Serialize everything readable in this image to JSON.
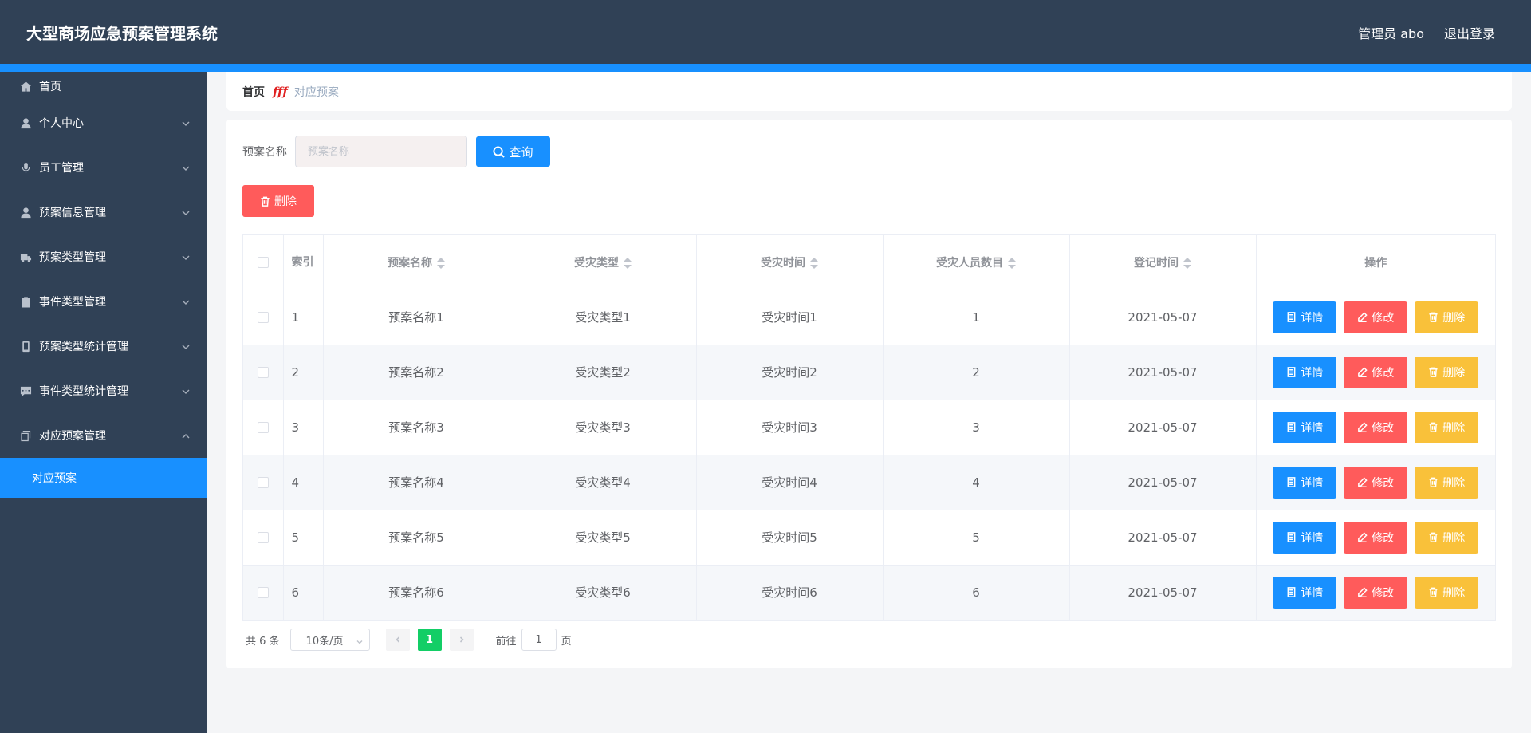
{
  "header": {
    "title": "大型商场应急预案管理系统",
    "user": "管理员 abo",
    "logout": "退出登录"
  },
  "colors": {
    "header_bg": "#304156",
    "accent": "#1890ff",
    "danger": "#ff5b5b",
    "warning": "#f9c13a",
    "success": "#13ce66"
  },
  "sidebar": {
    "items": [
      {
        "label": "首页",
        "icon": "home-icon"
      },
      {
        "label": "个人中心",
        "icon": "user-icon"
      },
      {
        "label": "员工管理",
        "icon": "microphone-icon"
      },
      {
        "label": "预案信息管理",
        "icon": "user-icon"
      },
      {
        "label": "预案类型管理",
        "icon": "truck-icon"
      },
      {
        "label": "事件类型管理",
        "icon": "clipboard-icon"
      },
      {
        "label": "预案类型统计管理",
        "icon": "phone-icon"
      },
      {
        "label": "事件类型统计管理",
        "icon": "chat-icon"
      },
      {
        "label": "对应预案管理",
        "icon": "copy-icon"
      }
    ],
    "active_submenu": "对应预案"
  },
  "breadcrumb": {
    "home": "首页",
    "separator": "fff",
    "current": "对应预案"
  },
  "search": {
    "label": "预案名称",
    "placeholder": "预案名称",
    "query_button": "查询"
  },
  "toolbar": {
    "delete_button": "删除"
  },
  "table": {
    "headers": {
      "index": "索引",
      "name": "预案名称",
      "type": "受灾类型",
      "time": "受灾时间",
      "count": "受灾人员数目",
      "date": "登记时间",
      "ops": "操作"
    },
    "rows": [
      {
        "index": "1",
        "name": "预案名称1",
        "type": "受灾类型1",
        "time": "受灾时间1",
        "count": "1",
        "date": "2021-05-07"
      },
      {
        "index": "2",
        "name": "预案名称2",
        "type": "受灾类型2",
        "time": "受灾时间2",
        "count": "2",
        "date": "2021-05-07"
      },
      {
        "index": "3",
        "name": "预案名称3",
        "type": "受灾类型3",
        "time": "受灾时间3",
        "count": "3",
        "date": "2021-05-07"
      },
      {
        "index": "4",
        "name": "预案名称4",
        "type": "受灾类型4",
        "time": "受灾时间4",
        "count": "4",
        "date": "2021-05-07"
      },
      {
        "index": "5",
        "name": "预案名称5",
        "type": "受灾类型5",
        "time": "受灾时间5",
        "count": "5",
        "date": "2021-05-07"
      },
      {
        "index": "6",
        "name": "预案名称6",
        "type": "受灾类型6",
        "time": "受灾时间6",
        "count": "6",
        "date": "2021-05-07"
      }
    ],
    "op_labels": {
      "detail": "详情",
      "edit": "修改",
      "delete": "删除"
    }
  },
  "pagination": {
    "total": "共 6 条",
    "page_size": "10条/页",
    "current_page": "1",
    "goto_prefix": "前往",
    "goto_value": "1",
    "goto_suffix": "页"
  }
}
